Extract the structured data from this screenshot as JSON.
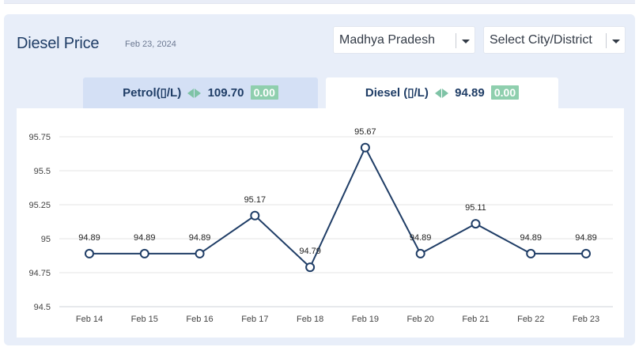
{
  "header": {
    "title": "Diesel Price",
    "date": "Feb 23, 2024"
  },
  "filters": {
    "state": "Madhya Pradesh",
    "city": "Select City/District"
  },
  "tabs": {
    "petrol": {
      "label": "Petrol(▯/L)",
      "price": "109.70",
      "change": "0.00"
    },
    "diesel": {
      "label": "Diesel (▯/L)",
      "price": "94.89",
      "change": "0.00",
      "active": true
    }
  },
  "colors": {
    "line": "#1f3d66",
    "change_badge": "#8fcfae",
    "arrow": "#7fc3a6"
  },
  "chart_data": {
    "type": "line",
    "categories": [
      "Feb 14",
      "Feb 15",
      "Feb 16",
      "Feb 17",
      "Feb 18",
      "Feb 19",
      "Feb 20",
      "Feb 21",
      "Feb 22",
      "Feb 23"
    ],
    "values": [
      94.89,
      94.89,
      94.89,
      95.17,
      94.79,
      95.67,
      94.89,
      95.11,
      94.89,
      94.89
    ],
    "value_labels": [
      "94.89",
      "94.89",
      "94.89",
      "95.17",
      "94.79",
      "95.67",
      "94.89",
      "95.11",
      "94.89",
      "94.89"
    ],
    "yticks": [
      94.5,
      94.75,
      95,
      95.25,
      95.5,
      95.75
    ],
    "ytick_labels": [
      "94.5",
      "94.75",
      "95",
      "95.25",
      "95.5",
      "95.75"
    ],
    "ylim": [
      94.5,
      95.75
    ],
    "grid": true,
    "markers": "hollow-circle",
    "title": "",
    "xlabel": "",
    "ylabel": ""
  }
}
